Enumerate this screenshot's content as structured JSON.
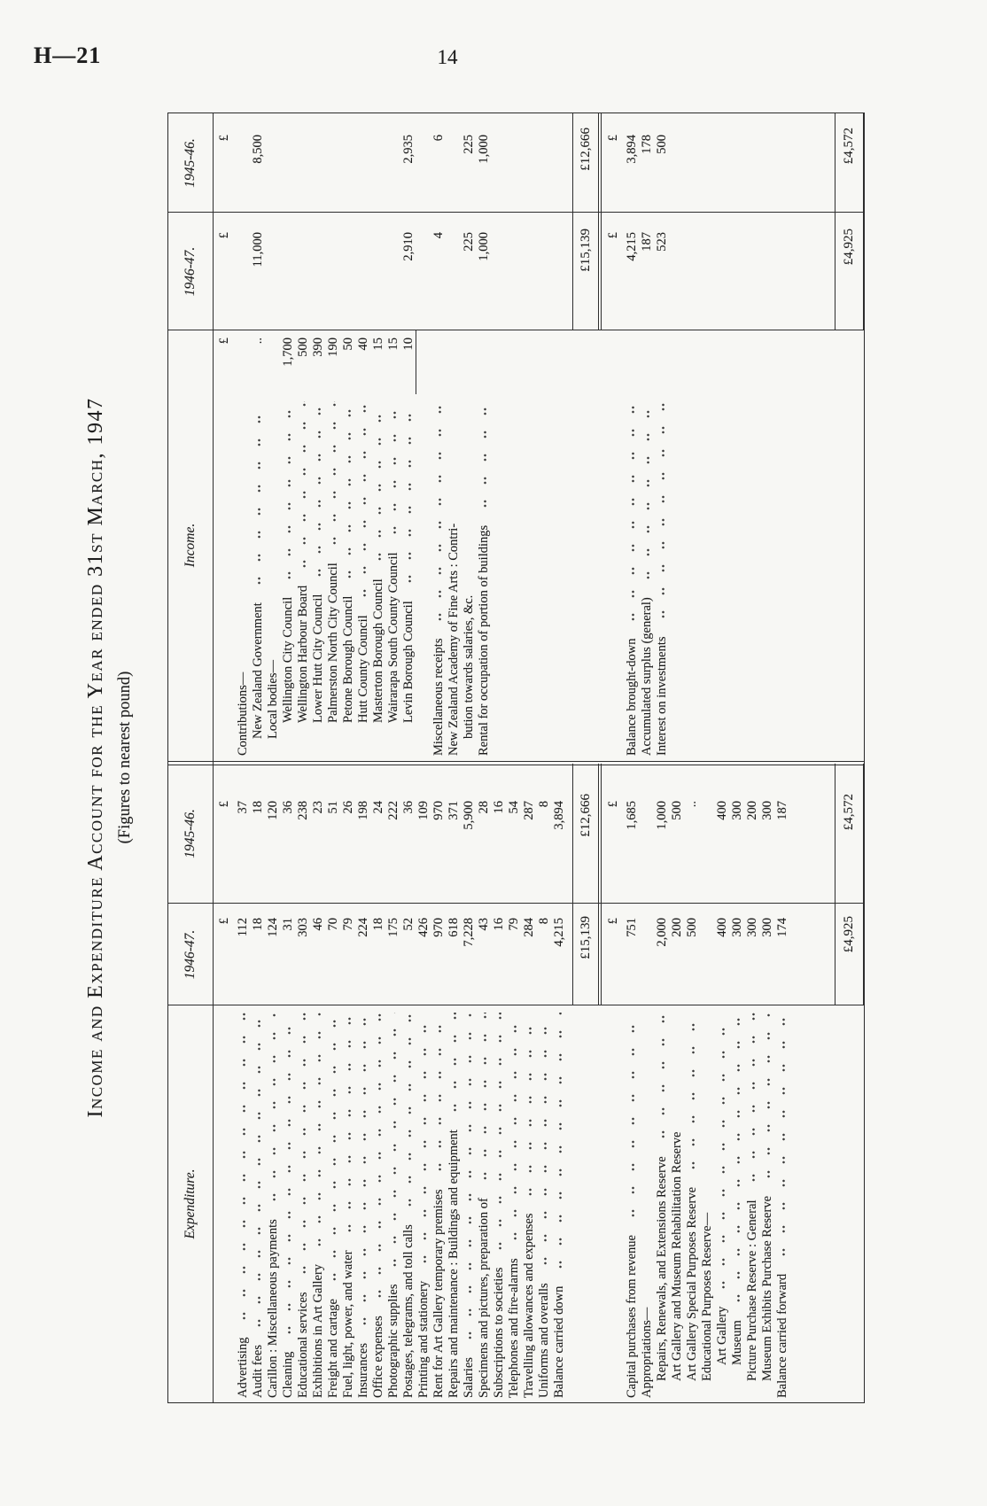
{
  "page": {
    "doc_ref": "H—21",
    "page_number": "14"
  },
  "title": "Income and Expenditure Account for the Year ended 31st March, 1947",
  "subtitle": "(Figures to nearest pound)",
  "table": {
    "currency_symbol": "£",
    "headers": {
      "expenditure": "Expenditure.",
      "income": "Income.",
      "year1": "1946-47.",
      "year2": "1945-46."
    },
    "expenditure": {
      "section1": {
        "rows": [
          {
            "l": "Advertising",
            "d": 1,
            "a": "112",
            "b": "37"
          },
          {
            "l": "Audit fees",
            "d": 1,
            "a": "18",
            "b": "18"
          },
          {
            "l": "Carillon : Miscellaneous payments",
            "d": 1,
            "a": "124",
            "b": "120"
          },
          {
            "l": "Cleaning",
            "d": 1,
            "a": "31",
            "b": "36"
          },
          {
            "l": "Educational services",
            "d": 1,
            "a": "303",
            "b": "238"
          },
          {
            "l": "Exhibitions in Art Gallery",
            "d": 1,
            "a": "46",
            "b": "23"
          },
          {
            "l": "Freight and cartage",
            "d": 1,
            "a": "70",
            "b": "51"
          },
          {
            "l": "Fuel, light, power, and water",
            "d": 1,
            "a": "79",
            "b": "26"
          },
          {
            "l": "Insurances",
            "d": 1,
            "a": "224",
            "b": "198"
          },
          {
            "l": "Office expenses",
            "d": 1,
            "a": "18",
            "b": "24"
          },
          {
            "l": "Photographic supplies",
            "d": 1,
            "a": "175",
            "b": "222"
          },
          {
            "l": "Postages, telegrams, and toll calls",
            "d": 1,
            "a": "52",
            "b": "36"
          },
          {
            "l": "Printing and stationery",
            "d": 1,
            "a": "426",
            "b": "109"
          },
          {
            "l": "Rent for Art Gallery temporary premises",
            "d": 1,
            "a": "970",
            "b": "970"
          },
          {
            "l": "Repairs and maintenance : Buildings and equipment",
            "d": 1,
            "a": "618",
            "b": "371"
          },
          {
            "l": "Salaries",
            "d": 1,
            "a": "7,228",
            "b": "5,900"
          },
          {
            "l": "Specimens and pictures, preparation of",
            "d": 1,
            "a": "43",
            "b": "28"
          },
          {
            "l": "Subscriptions to societies",
            "d": 1,
            "a": "16",
            "b": "16"
          },
          {
            "l": "Telephones and fire-alarms",
            "d": 1,
            "a": "79",
            "b": "54"
          },
          {
            "l": "Travelling allowances and expenses",
            "d": 1,
            "a": "284",
            "b": "287"
          },
          {
            "l": "Uniforms and overalls",
            "d": 1,
            "a": "8",
            "b": "8"
          },
          {
            "l": "Balance carried down",
            "d": 1,
            "a": "4,215",
            "b": "3,894"
          }
        ],
        "total_1946_47": "£15,139",
        "total_1945_46": "£12,666"
      },
      "section2": {
        "rows": [
          {
            "l": "Capital purchases from revenue",
            "d": 1,
            "a": "751",
            "b": "1,685"
          },
          {
            "l": "Appropriations—"
          },
          {
            "l": "Repairs, Renewals, and Extensions Reserve",
            "i": 1,
            "d": 1,
            "a": "2,000",
            "b": "1,000"
          },
          {
            "l": "Art Gallery and Museum Rehabilitation Reserve",
            "i": 1,
            "a": "200",
            "b": "500"
          },
          {
            "l": "Art Gallery Special Purposes Reserve",
            "i": 1,
            "d": 1,
            "a": "500",
            "b": ".."
          },
          {
            "l": "Educational Purposes Reserve—",
            "i": 1
          },
          {
            "l": "Art Gallery",
            "i": 2,
            "d": 1,
            "a": "400",
            "b": "400"
          },
          {
            "l": "Museum",
            "i": 2,
            "d": 1,
            "a": "300",
            "b": "300"
          },
          {
            "l": "Picture Purchase Reserve : General",
            "i": 1,
            "d": 1,
            "a": "300",
            "b": "200"
          },
          {
            "l": "Museum Exhibits Purchase Reserve",
            "i": 1,
            "d": 1,
            "a": "300",
            "b": "300"
          },
          {
            "l": "Balance carried forward",
            "d": 1,
            "a": "174",
            "b": "187"
          }
        ],
        "total_1946_47": "£4,925",
        "total_1945_46": "£4,572"
      }
    },
    "income": {
      "section1": {
        "rows": [
          {
            "l": "Contributions—"
          },
          {
            "l": "New Zealand Government",
            "i": 1,
            "d": 1,
            "s": "..",
            "a": "11,000",
            "b": "8,500"
          },
          {
            "l": "Local bodies—",
            "i": 1
          },
          {
            "l": "Wellington City Council",
            "i": 2,
            "d": 1,
            "s": "1,700"
          },
          {
            "l": "Wellington Harbour Board",
            "i": 2,
            "d": 1,
            "s": "500"
          },
          {
            "l": "Lower Hutt City Council",
            "i": 2,
            "d": 1,
            "s": "390"
          },
          {
            "l": "Palmerston North City Council",
            "i": 2,
            "d": 1,
            "s": "190"
          },
          {
            "l": "Petone Borough Council",
            "i": 2,
            "d": 1,
            "s": "50"
          },
          {
            "l": "Hutt County Council",
            "i": 2,
            "d": 1,
            "s": "40"
          },
          {
            "l": "Masterton Borough Council",
            "i": 2,
            "d": 1,
            "s": "15"
          },
          {
            "l": "Wairarapa South County Council",
            "i": 2,
            "d": 1,
            "s": "15"
          },
          {
            "l": "Levin Borough Council",
            "i": 2,
            "d": 1,
            "s": "10",
            "r": 1,
            "a": "2,910",
            "b": "2,935"
          },
          {
            "l": ""
          },
          {
            "l": "Miscellaneous receipts",
            "d": 1,
            "a": "4",
            "b": "6"
          },
          {
            "l": "New Zealand Academy of Fine Arts : Contri-"
          },
          {
            "l": "bution towards salaries, &c.",
            "i": 1,
            "a": "225",
            "b": "225"
          },
          {
            "l": "Rental for occupation of portion of buildings",
            "d": 1,
            "a": "1,000",
            "b": "1,000"
          }
        ],
        "total_1946_47": "£15,139",
        "total_1945_46": "£12,666"
      },
      "section2": {
        "rows": [
          {
            "l": "Balance brought-down",
            "d": 1,
            "a": "4,215",
            "b": "3,894"
          },
          {
            "l": "Accumulated surplus (general)",
            "d": 1,
            "a": "187",
            "b": "178"
          },
          {
            "l": "Interest on investments",
            "d": 1,
            "a": "523",
            "b": "500"
          }
        ],
        "total_1946_47": "£4,925",
        "total_1945_46": "£4,572"
      }
    }
  }
}
